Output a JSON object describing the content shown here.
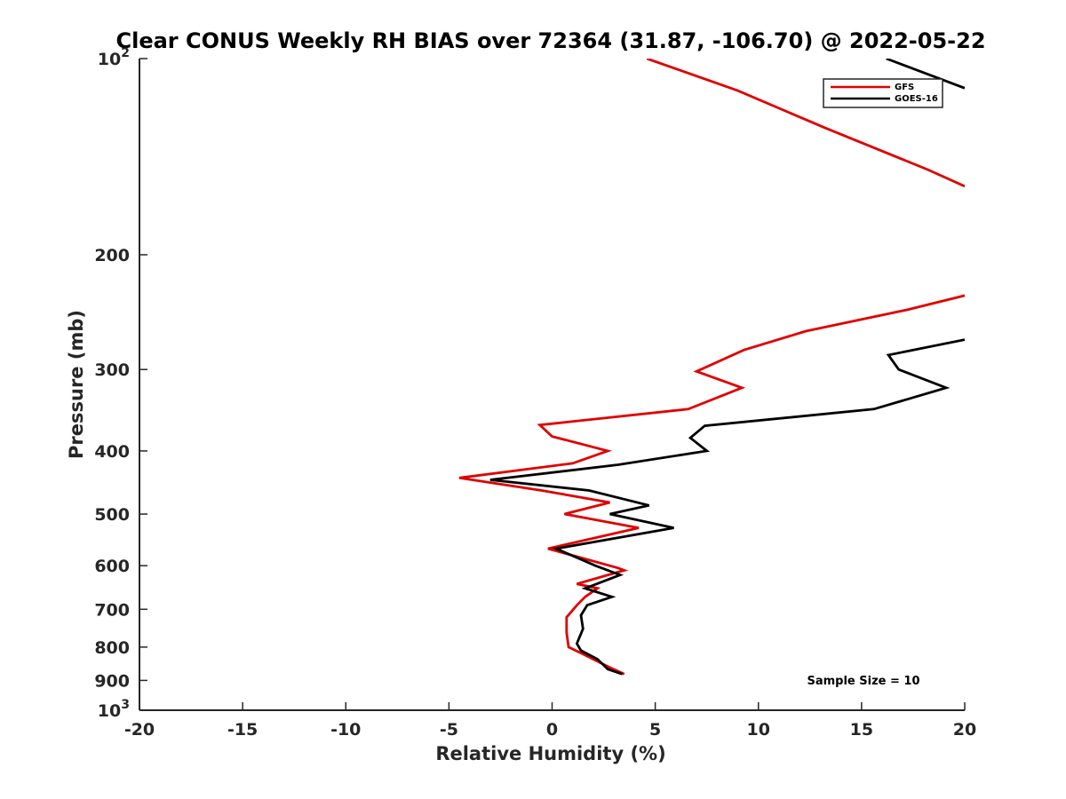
{
  "chart_data": {
    "type": "line",
    "title": "Clear CONUS Weekly RH BIAS over 72364 (31.87, -106.70) @ 2022-05-22",
    "xlabel": "Relative Humidity (%)",
    "ylabel": "Pressure (mb)",
    "xlim": [
      -20,
      20
    ],
    "ylim": [
      100,
      1000
    ],
    "y_scale": "log",
    "y_reversed": true,
    "x_ticks": [
      -20,
      -15,
      -10,
      -5,
      0,
      5,
      10,
      15,
      20
    ],
    "y_ticks": [
      {
        "value": 100,
        "base": "10",
        "exp": "2"
      },
      {
        "value": 200,
        "label": "200"
      },
      {
        "value": 300,
        "label": "300"
      },
      {
        "value": 400,
        "label": "400"
      },
      {
        "value": 500,
        "label": "500"
      },
      {
        "value": 600,
        "label": "600"
      },
      {
        "value": 700,
        "label": "700"
      },
      {
        "value": 800,
        "label": "800"
      },
      {
        "value": 900,
        "label": "900"
      },
      {
        "value": 1000,
        "base": "10",
        "exp": "3"
      }
    ],
    "grid": false,
    "legend_position": "top-right",
    "annotation": "Sample Size = 10",
    "series": [
      {
        "name": "GFS",
        "color": "#e00000",
        "points": [
          [
            3.5,
            880
          ],
          [
            2.8,
            860
          ],
          [
            1.5,
            820
          ],
          [
            0.8,
            800
          ],
          [
            0.7,
            760
          ],
          [
            0.7,
            720
          ],
          [
            1.2,
            690
          ],
          [
            1.6,
            670
          ],
          [
            2.2,
            650
          ],
          [
            1.2,
            640
          ],
          [
            3.5,
            610
          ],
          [
            3.2,
            605
          ],
          [
            -0.2,
            565
          ],
          [
            4.2,
            525
          ],
          [
            0.6,
            500
          ],
          [
            2.8,
            480
          ],
          [
            -0.5,
            460
          ],
          [
            -4.5,
            440
          ],
          [
            1.0,
            418
          ],
          [
            2.7,
            400
          ],
          [
            0.0,
            380
          ],
          [
            -0.6,
            365
          ],
          [
            6.6,
            345
          ],
          [
            9.2,
            320
          ],
          [
            7.0,
            302
          ],
          [
            9.3,
            280
          ],
          [
            12.3,
            262
          ],
          [
            17.2,
            243
          ],
          [
            20.0,
            231
          ]
        ]
      },
      {
        "name": "GOES-16",
        "color": "#000000",
        "points": [
          [
            3.4,
            880
          ],
          [
            2.7,
            865
          ],
          [
            2.2,
            835
          ],
          [
            1.4,
            810
          ],
          [
            1.2,
            790
          ],
          [
            1.5,
            750
          ],
          [
            1.4,
            715
          ],
          [
            1.7,
            690
          ],
          [
            2.9,
            670
          ],
          [
            1.6,
            650
          ],
          [
            3.3,
            620
          ],
          [
            2.1,
            600
          ],
          [
            0.2,
            565
          ],
          [
            5.9,
            525
          ],
          [
            2.8,
            500
          ],
          [
            4.7,
            485
          ],
          [
            1.8,
            460
          ],
          [
            -3.0,
            443
          ],
          [
            3.2,
            420
          ],
          [
            7.5,
            400
          ],
          [
            6.7,
            382
          ],
          [
            7.4,
            366
          ],
          [
            15.6,
            345
          ],
          [
            19.1,
            320
          ],
          [
            16.8,
            300
          ],
          [
            16.3,
            285
          ],
          [
            20.0,
            270
          ]
        ]
      },
      {
        "name": "GFS",
        "color": "#e00000",
        "points": [
          [
            4.6,
            100
          ],
          [
            9.0,
            112
          ],
          [
            13.3,
            128
          ],
          [
            18.2,
            148
          ],
          [
            20.0,
            157
          ]
        ]
      },
      {
        "name": "GOES-16",
        "color": "#000000",
        "points": [
          [
            16.2,
            100
          ],
          [
            20.0,
            111
          ]
        ]
      }
    ],
    "legend": [
      {
        "name": "GFS",
        "color": "#e00000"
      },
      {
        "name": "GOES-16",
        "color": "#000000"
      }
    ]
  }
}
